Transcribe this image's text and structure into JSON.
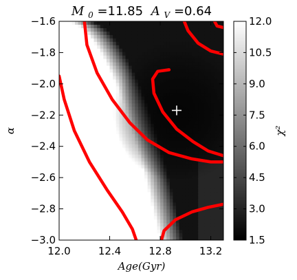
{
  "chart_data": {
    "type": "heatmap",
    "title": {
      "m_symbol": "M",
      "m_subscript": "0",
      "m_value": "=11.85",
      "a_symbol": "A",
      "a_subscript": "V",
      "a_value": "=0.64"
    },
    "xlabel": "Age(Gyr)",
    "ylabel": "α",
    "colorbar_label": "χ²",
    "xlim": [
      12.0,
      13.3
    ],
    "ylim": [
      -3.0,
      -1.6
    ],
    "xticks": [
      12.0,
      12.4,
      12.8,
      13.2
    ],
    "xtick_labels": [
      "12.0",
      "12.4",
      "12.8",
      "13.2"
    ],
    "yticks": [
      -3.0,
      -2.8,
      -2.6,
      -2.4,
      -2.2,
      -2.0,
      -1.8,
      -1.6
    ],
    "ytick_labels": [
      "−3.0",
      "−2.8",
      "−2.6",
      "−2.4",
      "−2.2",
      "−2.0",
      "−1.8",
      "−1.6"
    ],
    "colorbar_range": [
      1.5,
      12.0
    ],
    "colorbar_ticks": [
      1.5,
      3.0,
      4.5,
      6.0,
      7.5,
      9.0,
      10.5,
      12.0
    ],
    "colorbar_tick_labels": [
      "1.5",
      "3.0",
      "4.5",
      "6.0",
      "7.5",
      "9.0",
      "10.5",
      "12.0"
    ],
    "colormap": "gray",
    "contour_color": "#ff0000",
    "best_fit": {
      "age": 12.93,
      "alpha": -2.17
    },
    "contours": [
      {
        "level": "inner",
        "points": [
          [
            12.87,
            -1.91
          ],
          [
            12.78,
            -1.92
          ],
          [
            12.74,
            -1.97
          ],
          [
            12.75,
            -2.06
          ],
          [
            12.82,
            -2.18
          ],
          [
            12.93,
            -2.29
          ],
          [
            13.06,
            -2.37
          ],
          [
            13.18,
            -2.43
          ],
          [
            13.3,
            -2.46
          ]
        ]
      },
      {
        "level": "middle",
        "points": [
          [
            12.2,
            -1.6
          ],
          [
            12.22,
            -1.75
          ],
          [
            12.3,
            -1.93
          ],
          [
            12.42,
            -2.1
          ],
          [
            12.56,
            -2.25
          ],
          [
            12.7,
            -2.36
          ],
          [
            12.87,
            -2.44
          ],
          [
            13.05,
            -2.48
          ],
          [
            13.2,
            -2.5
          ],
          [
            13.3,
            -2.5
          ]
        ]
      },
      {
        "level": "upper-right",
        "points": [
          [
            12.99,
            -1.6
          ],
          [
            13.02,
            -1.66
          ],
          [
            13.1,
            -1.74
          ],
          [
            13.2,
            -1.79
          ],
          [
            13.3,
            -1.81
          ]
        ]
      },
      {
        "level": "corner",
        "points": [
          [
            13.23,
            -1.6
          ],
          [
            13.25,
            -1.63
          ],
          [
            13.3,
            -1.64
          ]
        ]
      },
      {
        "level": "outer-left",
        "points": [
          [
            12.0,
            -1.95
          ],
          [
            12.04,
            -2.1
          ],
          [
            12.12,
            -2.3
          ],
          [
            12.24,
            -2.5
          ],
          [
            12.38,
            -2.68
          ],
          [
            12.5,
            -2.82
          ],
          [
            12.58,
            -2.93
          ],
          [
            12.61,
            -3.0
          ]
        ]
      },
      {
        "level": "outer-bottom",
        "points": [
          [
            12.81,
            -3.0
          ],
          [
            12.83,
            -2.94
          ],
          [
            12.92,
            -2.87
          ],
          [
            13.05,
            -2.82
          ],
          [
            13.18,
            -2.79
          ],
          [
            13.3,
            -2.77
          ]
        ]
      }
    ]
  }
}
